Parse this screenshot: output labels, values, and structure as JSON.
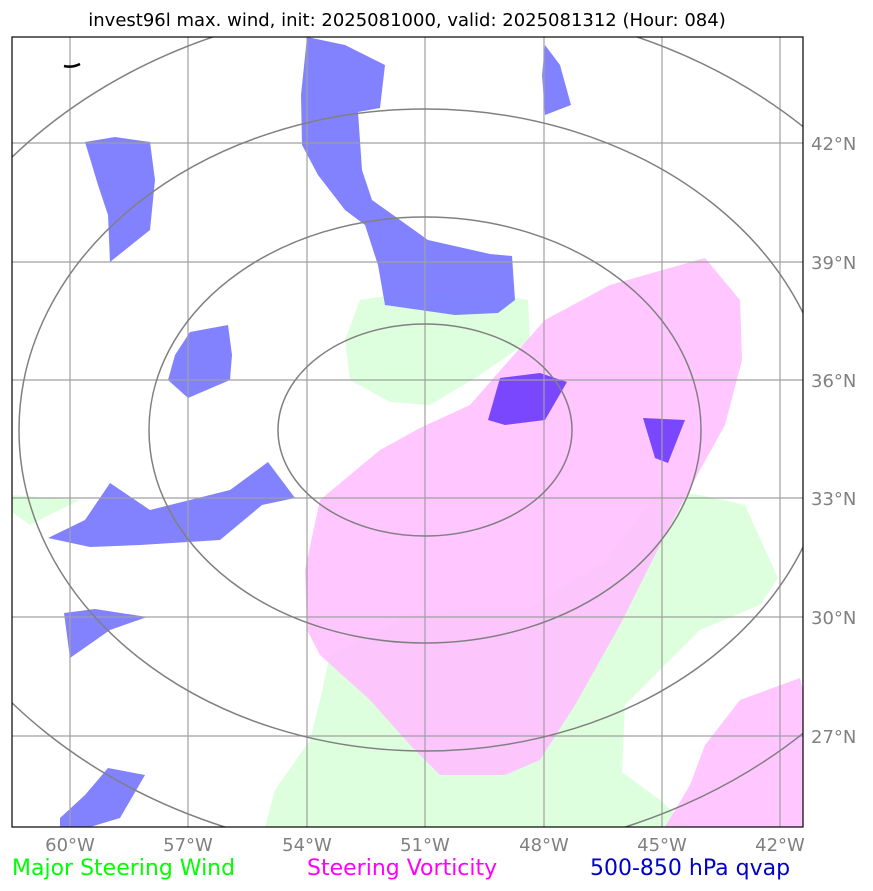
{
  "title": "invest96l max. wind, init: 2025081000, valid: 2025081312 (Hour: 084)",
  "map": {
    "lon_ticks": [
      "60°W",
      "57°W",
      "54°W",
      "51°W",
      "48°W",
      "45°W",
      "42°W"
    ],
    "lat_ticks": [
      "42°N",
      "39°N",
      "36°N",
      "33°N",
      "30°N",
      "27°N"
    ]
  },
  "legend": {
    "steering_wind": {
      "label": "Major Steering Wind",
      "color": "#00ff00"
    },
    "vorticity": {
      "label": "Steering Vorticity",
      "color": "#ff00ff"
    },
    "qvap": {
      "label": "500-850 hPa qvap",
      "color": "#0000cc"
    }
  },
  "colors": {
    "steering_wind_fill": "#ddffdd",
    "vorticity_fill": "#ffc0ff",
    "qvap_fill": "#7b7bff",
    "qvap_dark_fill": "#7340ff",
    "range_rings": "#808080",
    "gridlines": "#a0a0a0"
  }
}
